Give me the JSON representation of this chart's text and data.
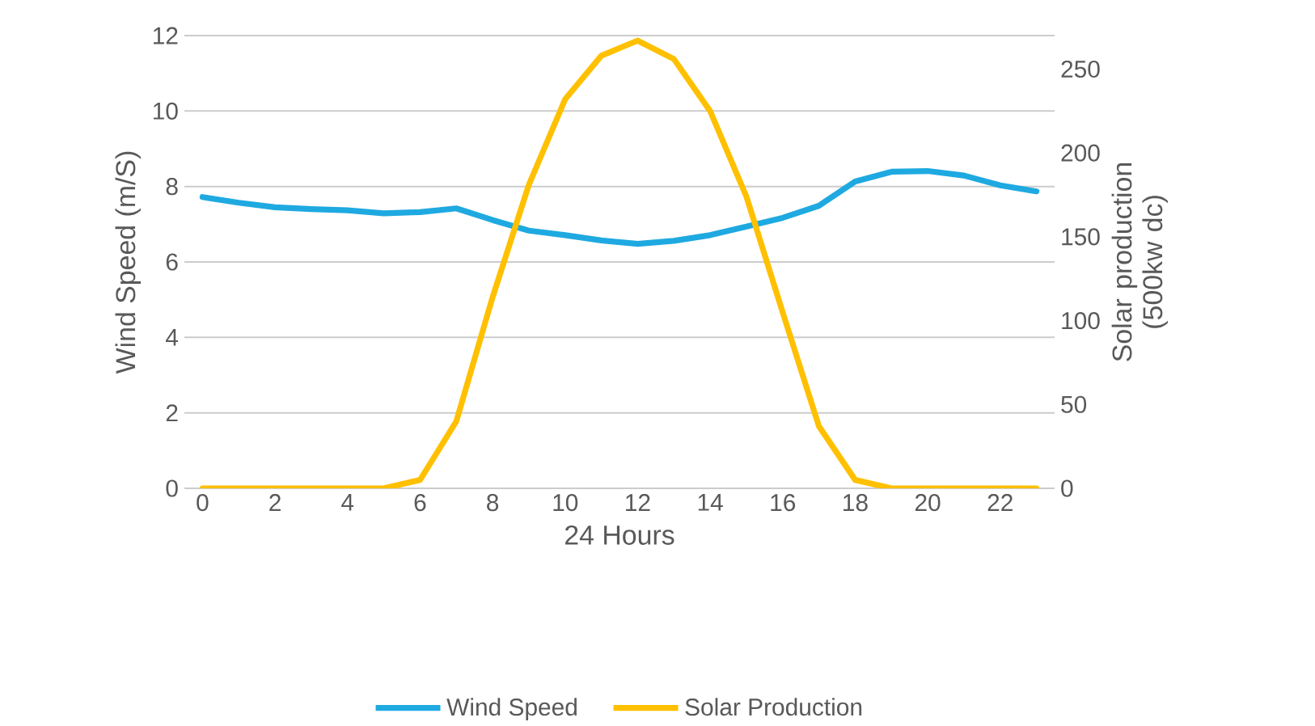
{
  "chart_data": {
    "type": "line",
    "xlabel": "24 Hours",
    "ylabel": "Wind Speed (m/S)",
    "y2label": "Solar production (500kw dc)",
    "x": [
      0,
      1,
      2,
      3,
      4,
      5,
      6,
      7,
      8,
      9,
      10,
      11,
      12,
      13,
      14,
      15,
      16,
      17,
      18,
      19,
      20,
      21,
      22,
      23
    ],
    "xlim": [
      -0.5,
      23.5
    ],
    "xticks": [
      0,
      2,
      4,
      6,
      8,
      10,
      12,
      14,
      16,
      18,
      20,
      22
    ],
    "ylim": [
      0,
      12
    ],
    "yticks": [
      0,
      2,
      4,
      6,
      8,
      10,
      12
    ],
    "y2lim": [
      0,
      270
    ],
    "y2ticks": [
      0,
      50,
      100,
      150,
      200,
      250
    ],
    "grid": "y",
    "legend": "bottom",
    "marker": "none",
    "line_style": "solid",
    "series": [
      {
        "name": "Wind Speed",
        "color": "#1fa9e1",
        "axis": "y",
        "values": [
          7.72,
          7.57,
          7.45,
          7.4,
          7.37,
          7.29,
          7.32,
          7.42,
          7.11,
          6.83,
          6.71,
          6.57,
          6.48,
          6.56,
          6.71,
          6.94,
          7.17,
          7.49,
          8.13,
          8.39,
          8.41,
          8.29,
          8.03,
          7.87
        ]
      },
      {
        "name": "Solar Production",
        "color": "#ffc000",
        "axis": "y2",
        "values": [
          0,
          0,
          0,
          0,
          0,
          0,
          5,
          40,
          114,
          181,
          232,
          258,
          267,
          256,
          225,
          174,
          105,
          37,
          5,
          0,
          0,
          0,
          0,
          0
        ]
      }
    ]
  }
}
